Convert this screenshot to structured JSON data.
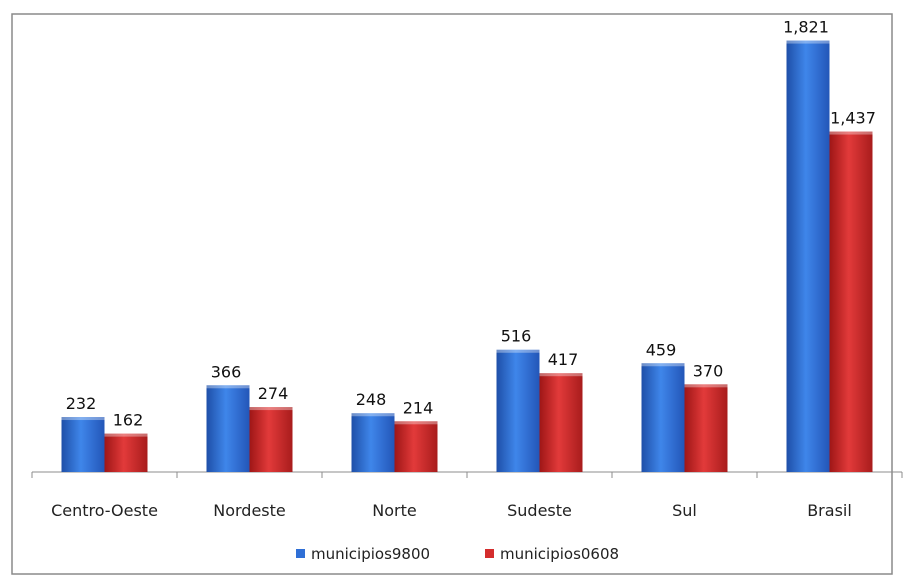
{
  "chart_data": {
    "type": "bar",
    "categories": [
      "Centro-Oeste",
      "Nordeste",
      "Norte",
      "Sudeste",
      "Sul",
      "Brasil"
    ],
    "series": [
      {
        "name": "municipios9800",
        "values": [
          232,
          366,
          248,
          516,
          459,
          1821
        ],
        "labels": [
          "232",
          "366",
          "248",
          "516",
          "459",
          "1,821"
        ],
        "color": "#2f6fd6"
      },
      {
        "name": "municipios0608",
        "values": [
          162,
          274,
          214,
          417,
          370,
          1437
        ],
        "labels": [
          "162",
          "274",
          "214",
          "417",
          "370",
          "1,437"
        ],
        "color": "#d42d2d"
      }
    ],
    "title": "",
    "xlabel": "",
    "ylabel": "",
    "ylim": [
      0,
      1950
    ],
    "grid": false,
    "legend_position": "bottom"
  }
}
